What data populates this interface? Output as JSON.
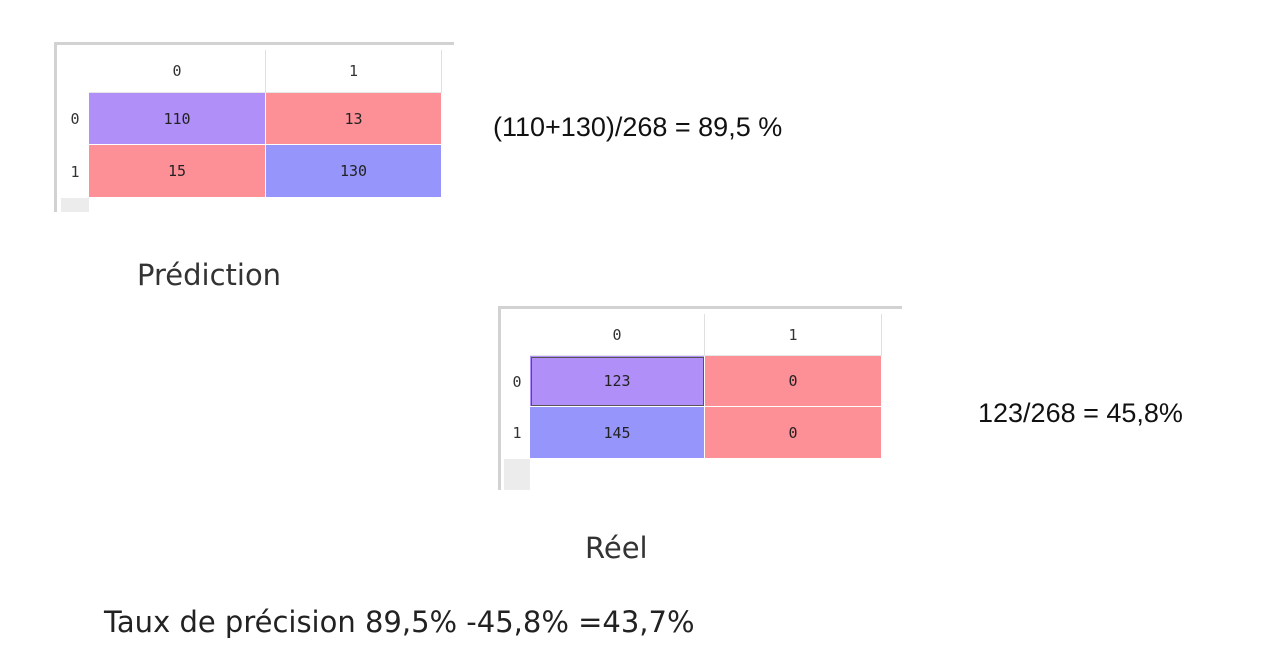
{
  "colors": {
    "purple": "#b090f8",
    "red": "#fd8f97",
    "blue": "#9595fb"
  },
  "prediction": {
    "col_headers": [
      "0",
      "1"
    ],
    "row_headers": [
      "0",
      "1"
    ],
    "cells": [
      [
        {
          "value": "110",
          "color": "#b090f8"
        },
        {
          "value": "13",
          "color": "#fd8f97"
        }
      ],
      [
        {
          "value": "15",
          "color": "#fd8f97"
        },
        {
          "value": "130",
          "color": "#9595fb"
        }
      ]
    ],
    "formula": "(110+130)/268 = 89,5 %",
    "caption": "Prédiction"
  },
  "reel": {
    "col_headers": [
      "0",
      "1"
    ],
    "row_headers": [
      "0",
      "1"
    ],
    "cells": [
      [
        {
          "value": "123",
          "color": "#b090f8"
        },
        {
          "value": "0",
          "color": "#fd8f97"
        }
      ],
      [
        {
          "value": "145",
          "color": "#9595fb"
        },
        {
          "value": "0",
          "color": "#fd8f97"
        }
      ]
    ],
    "formula": "123/268 = 45,8%",
    "caption": "Réel"
  },
  "summary": "Taux de précision 89,5% -45,8% =43,7%"
}
